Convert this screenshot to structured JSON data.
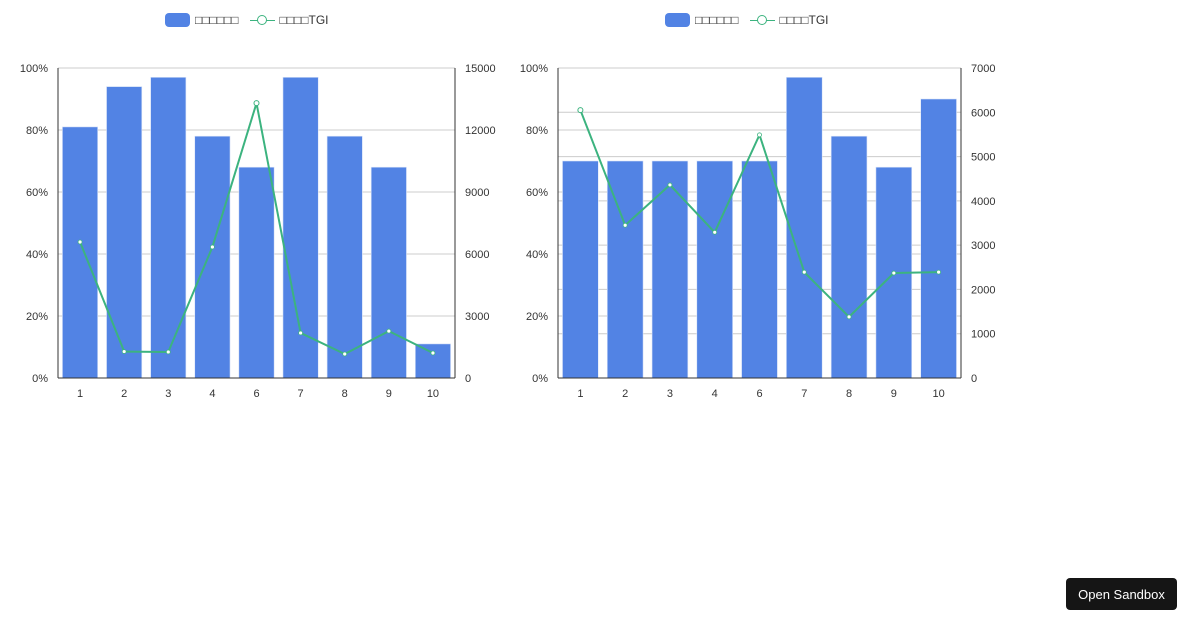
{
  "colors": {
    "bar": "#5283E4",
    "line": "#3CB37F",
    "grid": "#cccccc",
    "axis": "#333333"
  },
  "sandbox_button": {
    "label": "Open Sandbox"
  },
  "charts": [
    {
      "legend": {
        "bar_label": "□□□□□□",
        "line_label": "□□□□TGI"
      },
      "left_axis_ticks": [
        "0%",
        "20%",
        "40%",
        "60%",
        "80%",
        "100%"
      ],
      "right_axis_ticks": [
        "0",
        "3000",
        "6000",
        "9000",
        "12000",
        "15000"
      ],
      "categories": [
        "1",
        "2",
        "3",
        "4",
        "6",
        "7",
        "8",
        "9",
        "10"
      ]
    },
    {
      "legend": {
        "bar_label": "□□□□□□",
        "line_label": "□□□□TGI"
      },
      "left_axis_ticks": [
        "0%",
        "20%",
        "40%",
        "60%",
        "80%",
        "100%"
      ],
      "right_axis_ticks": [
        "0",
        "1000",
        "2000",
        "3000",
        "4000",
        "5000",
        "6000",
        "7000"
      ],
      "categories": [
        "1",
        "2",
        "3",
        "4",
        "6",
        "7",
        "8",
        "9",
        "10"
      ]
    }
  ],
  "chart_data": [
    {
      "type": "bar",
      "combo": "bar+line (dual axis)",
      "categories": [
        "1",
        "2",
        "3",
        "4",
        "6",
        "7",
        "8",
        "9",
        "10"
      ],
      "series": [
        {
          "name": "□□□□□□",
          "type": "bar",
          "axis": "left",
          "values": [
            0.81,
            0.94,
            0.97,
            0.78,
            0.68,
            0.97,
            0.78,
            0.68,
            0.11
          ]
        },
        {
          "name": "□□□□TGI",
          "type": "line",
          "axis": "right",
          "values": [
            6580,
            1280,
            1260,
            6340,
            13300,
            2180,
            1160,
            2270,
            1210
          ]
        }
      ],
      "title": "",
      "xlabel": "",
      "ylabel": "",
      "ylim_left": [
        0,
        1
      ],
      "ylim_right": [
        0,
        15000
      ],
      "left_ticks": [
        "0%",
        "20%",
        "40%",
        "60%",
        "80%",
        "100%"
      ],
      "right_ticks": [
        0,
        3000,
        6000,
        9000,
        12000,
        15000
      ],
      "grid": true,
      "legend_position": "top"
    },
    {
      "type": "bar",
      "combo": "bar+line (dual axis)",
      "categories": [
        "1",
        "2",
        "3",
        "4",
        "6",
        "7",
        "8",
        "9",
        "10"
      ],
      "series": [
        {
          "name": "□□□□□□",
          "type": "bar",
          "axis": "left",
          "values": [
            0.7,
            0.7,
            0.7,
            0.7,
            0.7,
            0.97,
            0.78,
            0.68,
            0.9
          ]
        },
        {
          "name": "□□□□TGI",
          "type": "line",
          "axis": "right",
          "values": [
            6050,
            3450,
            4360,
            3290,
            5490,
            2390,
            1380,
            2370,
            2390
          ]
        }
      ],
      "title": "",
      "xlabel": "",
      "ylabel": "",
      "ylim_left": [
        0,
        1
      ],
      "ylim_right": [
        0,
        7000
      ],
      "left_ticks": [
        "0%",
        "20%",
        "40%",
        "60%",
        "80%",
        "100%"
      ],
      "right_ticks": [
        0,
        1000,
        2000,
        3000,
        4000,
        5000,
        6000,
        7000
      ],
      "grid": true,
      "legend_position": "top"
    }
  ]
}
